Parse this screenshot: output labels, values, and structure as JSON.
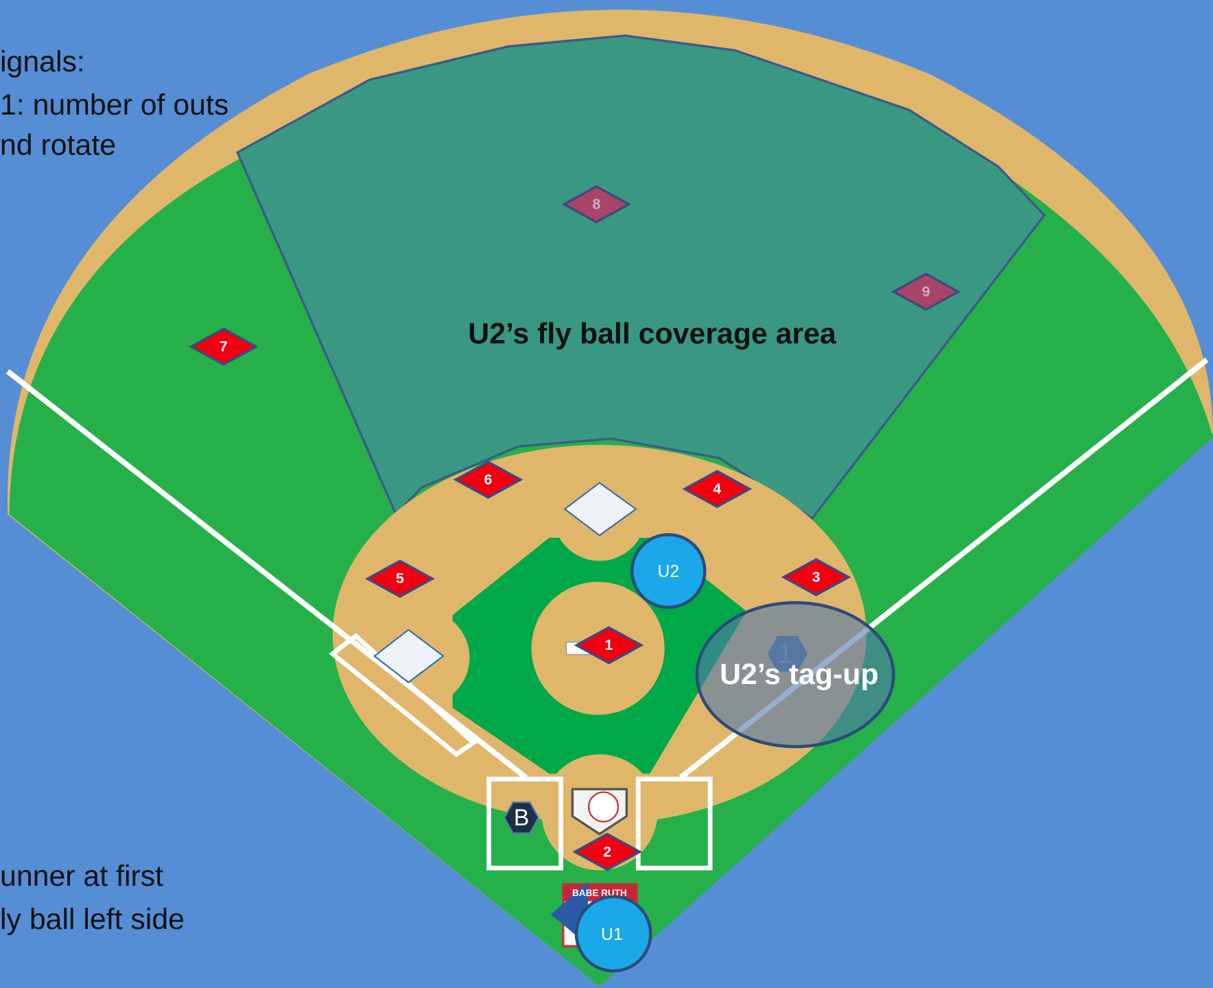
{
  "notes": {
    "top": [
      "ignals:",
      "1: number of outs",
      "nd rotate"
    ],
    "bottom": [
      "unner at first",
      "ly ball left side"
    ]
  },
  "areas": {
    "coverage": "U2’s fly ball coverage area",
    "tagup": "U2’s tag-up",
    "tagup_hidden_marker": "1"
  },
  "players": [
    {
      "label": "8"
    },
    {
      "label": "9"
    },
    {
      "label": "7"
    },
    {
      "label": "6"
    },
    {
      "label": "4"
    },
    {
      "label": "5"
    },
    {
      "label": "3"
    },
    {
      "label": "1"
    },
    {
      "label": "2"
    }
  ],
  "umpires": [
    {
      "label": "U2"
    },
    {
      "label": "U1"
    }
  ],
  "batter": "B",
  "logo": "BABE RUTH"
}
